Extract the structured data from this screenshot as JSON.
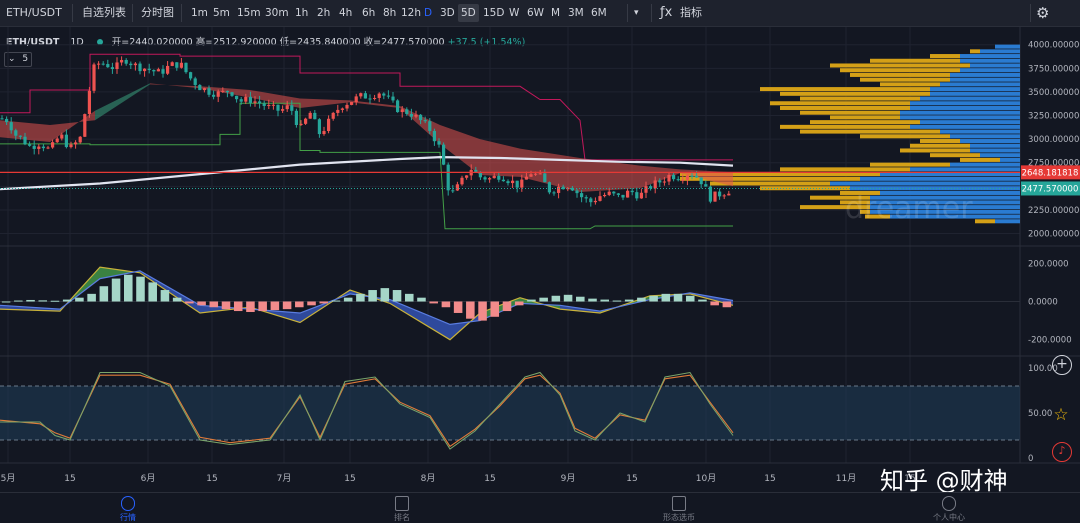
{
  "toolbar": {
    "symbol": "ETH/USDT",
    "watchlist": "自选列表",
    "timeshare": "分时图",
    "timeframes": [
      "1m",
      "5m",
      "15m",
      "30m",
      "1h",
      "2h",
      "4h",
      "6h",
      "8h",
      "12h",
      "D",
      "3D",
      "5D",
      "15D",
      "W",
      "6W",
      "M",
      "3M",
      "6M"
    ],
    "active_timeframe": "D",
    "selected_timeframe": "5D",
    "indicators": "指标"
  },
  "legend": {
    "symbol": "ETH/USDT",
    "interval": "1D",
    "open": "开=2440.020000",
    "high": "高=2512.920000",
    "low": "低=2435.840000",
    "close": "收=2477.570000",
    "change": "+37.5",
    "change_pct": "(+1.54%)",
    "indicator_count": "5"
  },
  "colors": {
    "up": "#ef5350",
    "down": "#26a69a",
    "background": "#131722",
    "grid": "#1f2330",
    "long_ma": "#e1e4f0",
    "channel_upper": "#c2185b",
    "channel_lower": "#43a047",
    "hline": "#e53935",
    "volume_profile_a": "#d4a017",
    "volume_profile_b": "#2a7bd1"
  },
  "price_labels": {
    "hline": "2648.181818",
    "last": "2477.570000"
  },
  "chart_data": [
    {
      "type": "candlestick",
      "title": "",
      "y_ticks": [
        "4000.000000",
        "3750.000000",
        "3500.000000",
        "3250.000000",
        "3000.000000",
        "2750.000000",
        "2500.000000",
        "2250.000000",
        "2000.000000"
      ],
      "ylim": [
        1900,
        4050
      ],
      "x_ticks": [
        "5月",
        "15",
        "6月",
        "15",
        "7月",
        "15",
        "8月",
        "15",
        "9月",
        "15",
        "10月",
        "15",
        "11月",
        "15"
      ],
      "close_path": [
        [
          0,
          3220
        ],
        [
          8,
          3200
        ],
        [
          15,
          3050
        ],
        [
          22,
          3000
        ],
        [
          30,
          2920
        ],
        [
          40,
          2960
        ],
        [
          50,
          2880
        ],
        [
          60,
          3050
        ],
        [
          70,
          2900
        ],
        [
          80,
          3000
        ],
        [
          88,
          3450
        ],
        [
          95,
          3800
        ],
        [
          105,
          3800
        ],
        [
          115,
          3750
        ],
        [
          125,
          3850
        ],
        [
          135,
          3780
        ],
        [
          145,
          3750
        ],
        [
          160,
          3700
        ],
        [
          170,
          3780
        ],
        [
          180,
          3800
        ],
        [
          190,
          3650
        ],
        [
          200,
          3550
        ],
        [
          210,
          3500
        ],
        [
          220,
          3480
        ],
        [
          230,
          3520
        ],
        [
          240,
          3400
        ],
        [
          250,
          3420
        ],
        [
          260,
          3380
        ],
        [
          270,
          3330
        ],
        [
          280,
          3300
        ],
        [
          290,
          3350
        ],
        [
          300,
          3100
        ],
        [
          310,
          3280
        ],
        [
          320,
          3050
        ],
        [
          330,
          3200
        ],
        [
          340,
          3350
        ],
        [
          350,
          3400
        ],
        [
          360,
          3450
        ],
        [
          370,
          3460
        ],
        [
          380,
          3500
        ],
        [
          390,
          3400
        ],
        [
          400,
          3300
        ],
        [
          410,
          3280
        ],
        [
          420,
          3200
        ],
        [
          430,
          3100
        ],
        [
          440,
          2900
        ],
        [
          445,
          2650
        ],
        [
          450,
          2400
        ],
        [
          460,
          2520
        ],
        [
          470,
          2700
        ],
        [
          480,
          2600
        ],
        [
          490,
          2580
        ],
        [
          500,
          2620
        ],
        [
          510,
          2560
        ],
        [
          520,
          2500
        ],
        [
          530,
          2650
        ],
        [
          540,
          2600
        ],
        [
          550,
          2450
        ],
        [
          560,
          2500
        ],
        [
          570,
          2520
        ],
        [
          580,
          2400
        ],
        [
          590,
          2330
        ],
        [
          600,
          2400
        ],
        [
          610,
          2420
        ],
        [
          620,
          2380
        ],
        [
          630,
          2450
        ],
        [
          640,
          2400
        ],
        [
          650,
          2500
        ],
        [
          660,
          2550
        ],
        [
          670,
          2620
        ],
        [
          680,
          2600
        ],
        [
          690,
          2650
        ],
        [
          700,
          2580
        ],
        [
          710,
          2380
        ],
        [
          720,
          2420
        ],
        [
          733,
          2477
        ]
      ],
      "long_ma_path": [
        [
          0,
          2470
        ],
        [
          100,
          2530
        ],
        [
          200,
          2630
        ],
        [
          300,
          2730
        ],
        [
          400,
          2790
        ],
        [
          440,
          2810
        ],
        [
          500,
          2800
        ],
        [
          560,
          2780
        ],
        [
          620,
          2760
        ],
        [
          680,
          2750
        ],
        [
          733,
          2720
        ]
      ],
      "cloud_upper_path": [
        [
          0,
          3200
        ],
        [
          50,
          3150
        ],
        [
          95,
          3200
        ],
        [
          150,
          3580
        ],
        [
          200,
          3560
        ],
        [
          250,
          3520
        ],
        [
          300,
          3430
        ],
        [
          350,
          3410
        ],
        [
          400,
          3350
        ],
        [
          440,
          3150
        ],
        [
          480,
          3000
        ],
        [
          520,
          2900
        ],
        [
          580,
          2800
        ],
        [
          640,
          2720
        ],
        [
          680,
          2680
        ],
        [
          733,
          2650
        ]
      ],
      "cloud_lower_path": [
        [
          0,
          3020
        ],
        [
          50,
          2970
        ],
        [
          95,
          3300
        ],
        [
          150,
          3590
        ],
        [
          200,
          3540
        ],
        [
          250,
          3440
        ],
        [
          300,
          3330
        ],
        [
          350,
          3390
        ],
        [
          400,
          3330
        ],
        [
          440,
          2950
        ],
        [
          480,
          2620
        ],
        [
          520,
          2600
        ],
        [
          580,
          2440
        ],
        [
          640,
          2480
        ],
        [
          680,
          2640
        ],
        [
          733,
          2500
        ]
      ],
      "channel_upper_path": [
        [
          0,
          3280
        ],
        [
          30,
          3280
        ],
        [
          30,
          3520
        ],
        [
          90,
          3520
        ],
        [
          90,
          3900
        ],
        [
          180,
          3900
        ],
        [
          180,
          3880
        ],
        [
          300,
          3880
        ],
        [
          300,
          3700
        ],
        [
          400,
          3700
        ],
        [
          400,
          3560
        ],
        [
          520,
          3560
        ],
        [
          540,
          3420
        ],
        [
          560,
          3420
        ],
        [
          580,
          3200
        ],
        [
          585,
          2780
        ],
        [
          733,
          2780
        ]
      ],
      "channel_lower_path": [
        [
          0,
          2950
        ],
        [
          90,
          2950
        ],
        [
          90,
          2940
        ],
        [
          220,
          2940
        ],
        [
          220,
          3050
        ],
        [
          240,
          3050
        ],
        [
          240,
          3380
        ],
        [
          300,
          3380
        ],
        [
          300,
          2880
        ],
        [
          320,
          2880
        ],
        [
          320,
          2860
        ],
        [
          440,
          2860
        ],
        [
          445,
          2050
        ],
        [
          590,
          2050
        ],
        [
          595,
          2080
        ],
        [
          733,
          2080
        ]
      ],
      "hline_value": 2648.18,
      "last_value": 2477.57
    },
    {
      "type": "volume_profile",
      "price_bins": [
        3980,
        3930,
        3880,
        3830,
        3780,
        3730,
        3680,
        3630,
        3580,
        3530,
        3480,
        3430,
        3380,
        3330,
        3280,
        3230,
        3180,
        3130,
        3080,
        3030,
        2980,
        2930,
        2880,
        2830,
        2780,
        2730,
        2680,
        2630,
        2580,
        2530,
        2480,
        2430,
        2380,
        2330,
        2280,
        2230,
        2180,
        2130
      ],
      "volume_a": [
        0,
        10,
        30,
        90,
        140,
        120,
        100,
        90,
        60,
        170,
        150,
        120,
        140,
        130,
        100,
        70,
        110,
        130,
        140,
        90,
        40,
        60,
        70,
        50,
        40,
        80,
        130,
        200,
        180,
        120,
        90,
        40,
        60,
        30,
        70,
        10,
        25,
        20
      ],
      "volume_b": [
        25,
        40,
        60,
        60,
        50,
        60,
        70,
        70,
        80,
        90,
        90,
        100,
        110,
        110,
        120,
        120,
        100,
        110,
        80,
        70,
        60,
        50,
        50,
        40,
        20,
        70,
        110,
        140,
        160,
        190,
        170,
        140,
        150,
        150,
        150,
        150,
        130,
        25
      ]
    },
    {
      "type": "macd",
      "y_ticks": [
        "200.0000",
        "0.0000",
        "-200.0000"
      ],
      "ylim": [
        -280,
        280
      ],
      "histogram": [
        0,
        5,
        8,
        6,
        4,
        10,
        20,
        40,
        80,
        120,
        140,
        130,
        100,
        60,
        20,
        -10,
        -20,
        -30,
        -40,
        -50,
        -55,
        -50,
        -45,
        -40,
        -30,
        -20,
        -10,
        5,
        20,
        40,
        60,
        70,
        60,
        40,
        20,
        -10,
        -30,
        -60,
        -90,
        -100,
        -80,
        -50,
        -20,
        10,
        20,
        30,
        35,
        25,
        15,
        10,
        5,
        10,
        20,
        30,
        40,
        40,
        30,
        10,
        -20,
        -30
      ],
      "dif_path": [
        [
          0,
          -40
        ],
        [
          60,
          -50
        ],
        [
          100,
          180
        ],
        [
          140,
          150
        ],
        [
          200,
          -60
        ],
        [
          250,
          -30
        ],
        [
          300,
          -110
        ],
        [
          350,
          60
        ],
        [
          390,
          -10
        ],
        [
          450,
          -200
        ],
        [
          480,
          -60
        ],
        [
          520,
          20
        ],
        [
          560,
          -40
        ],
        [
          600,
          -60
        ],
        [
          650,
          30
        ],
        [
          690,
          40
        ],
        [
          733,
          -20
        ]
      ],
      "dea_path": [
        [
          0,
          -20
        ],
        [
          60,
          -40
        ],
        [
          100,
          120
        ],
        [
          140,
          160
        ],
        [
          200,
          -20
        ],
        [
          250,
          -40
        ],
        [
          300,
          -60
        ],
        [
          350,
          40
        ],
        [
          390,
          10
        ],
        [
          450,
          -120
        ],
        [
          480,
          -100
        ],
        [
          520,
          -10
        ],
        [
          560,
          -20
        ],
        [
          600,
          -50
        ],
        [
          650,
          10
        ],
        [
          690,
          45
        ],
        [
          733,
          5
        ]
      ]
    },
    {
      "type": "oscillator",
      "y_ticks": [
        "100.00",
        "50.00",
        "0"
      ],
      "ylim": [
        0,
        100
      ],
      "band": [
        20,
        80
      ],
      "k_path": [
        [
          0,
          40
        ],
        [
          40,
          40
        ],
        [
          55,
          25
        ],
        [
          70,
          20
        ],
        [
          100,
          95
        ],
        [
          140,
          95
        ],
        [
          170,
          80
        ],
        [
          200,
          20
        ],
        [
          230,
          15
        ],
        [
          270,
          20
        ],
        [
          300,
          70
        ],
        [
          320,
          20
        ],
        [
          345,
          85
        ],
        [
          375,
          90
        ],
        [
          400,
          60
        ],
        [
          430,
          45
        ],
        [
          450,
          10
        ],
        [
          475,
          30
        ],
        [
          500,
          60
        ],
        [
          525,
          90
        ],
        [
          540,
          95
        ],
        [
          560,
          70
        ],
        [
          575,
          30
        ],
        [
          595,
          20
        ],
        [
          620,
          50
        ],
        [
          645,
          40
        ],
        [
          665,
          90
        ],
        [
          690,
          95
        ],
        [
          710,
          60
        ],
        [
          733,
          25
        ]
      ],
      "d_path": [
        [
          0,
          42
        ],
        [
          40,
          38
        ],
        [
          55,
          28
        ],
        [
          70,
          22
        ],
        [
          100,
          92
        ],
        [
          140,
          92
        ],
        [
          170,
          82
        ],
        [
          200,
          23
        ],
        [
          230,
          17
        ],
        [
          270,
          22
        ],
        [
          300,
          68
        ],
        [
          320,
          23
        ],
        [
          345,
          82
        ],
        [
          375,
          88
        ],
        [
          400,
          62
        ],
        [
          430,
          47
        ],
        [
          450,
          13
        ],
        [
          475,
          32
        ],
        [
          500,
          58
        ],
        [
          525,
          88
        ],
        [
          540,
          92
        ],
        [
          560,
          72
        ],
        [
          575,
          33
        ],
        [
          595,
          22
        ],
        [
          620,
          48
        ],
        [
          645,
          42
        ],
        [
          665,
          88
        ],
        [
          690,
          92
        ],
        [
          710,
          62
        ],
        [
          733,
          28
        ]
      ]
    }
  ],
  "nav": {
    "market": "行情",
    "ranking": "排名",
    "pattern": "形态选币",
    "profile": "个人中心"
  },
  "watermark": "知乎 @财神",
  "chart_watermark": "dreamer"
}
